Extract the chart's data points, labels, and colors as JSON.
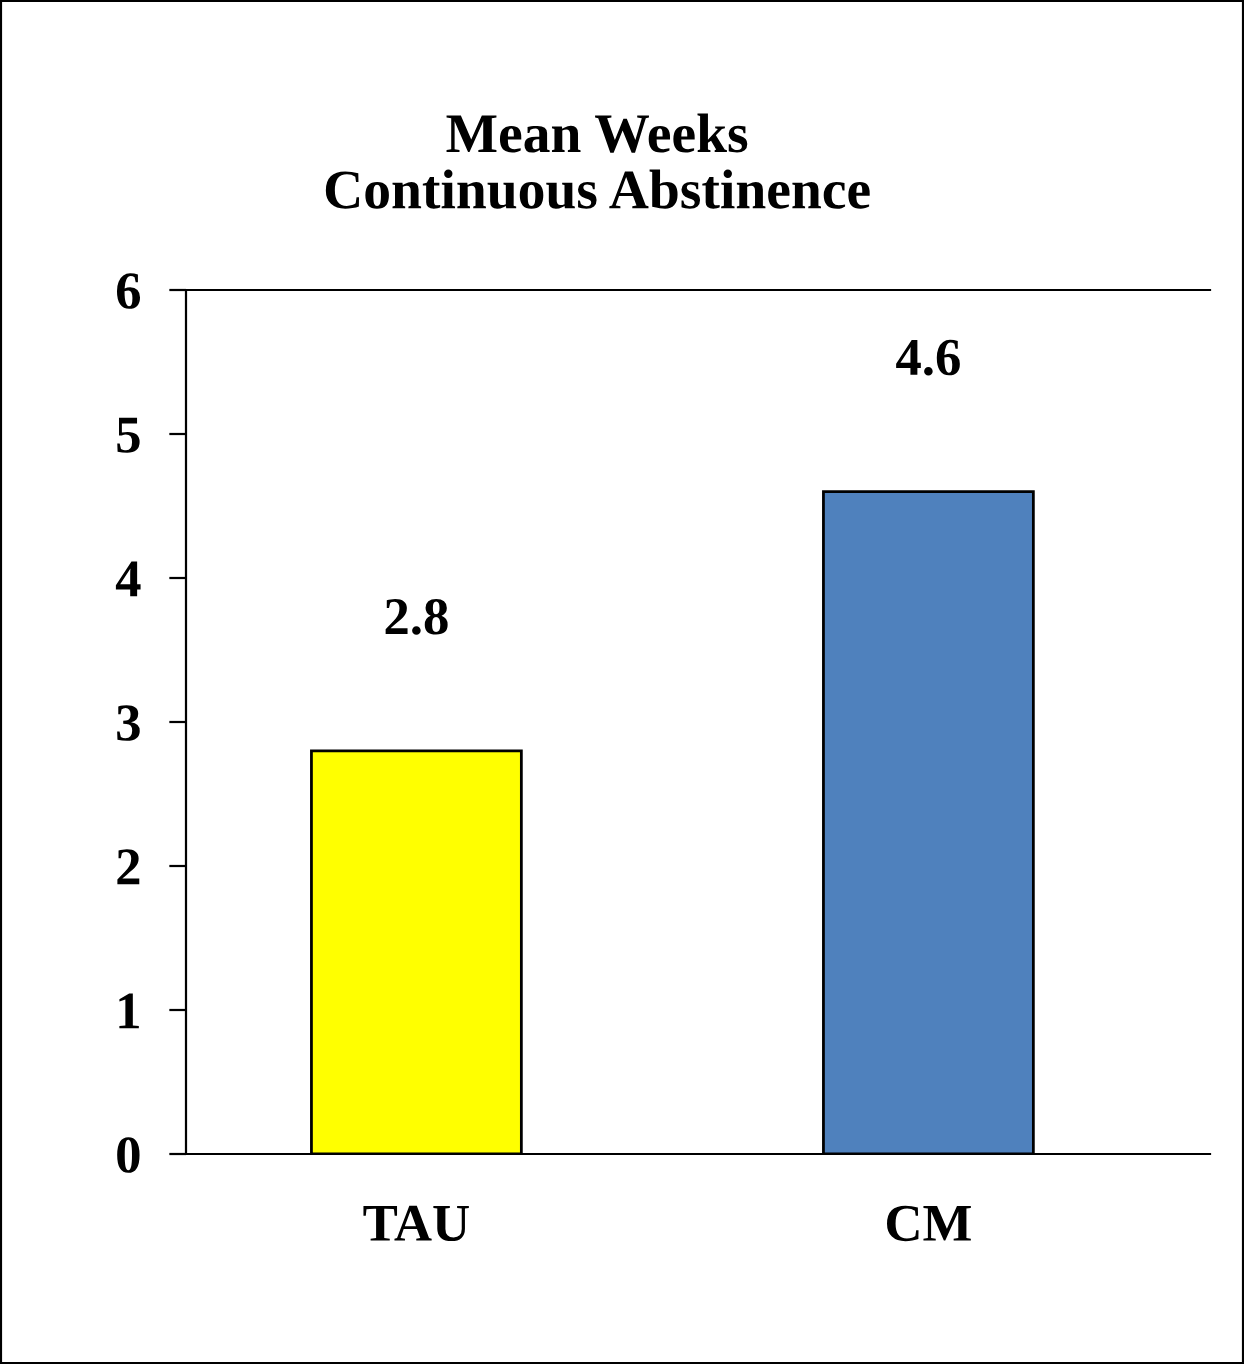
{
  "chart_data": {
    "type": "bar",
    "title": "Mean Weeks\nContinuous Abstinence",
    "categories": [
      "TAU",
      "CM"
    ],
    "values": [
      2.8,
      4.6
    ],
    "colors": [
      "#ffff00",
      "#4f81bd"
    ],
    "ylim": [
      0,
      6
    ],
    "yticks": [
      0,
      1,
      2,
      3,
      4,
      5,
      6
    ],
    "grid": false,
    "data_labels": true
  }
}
